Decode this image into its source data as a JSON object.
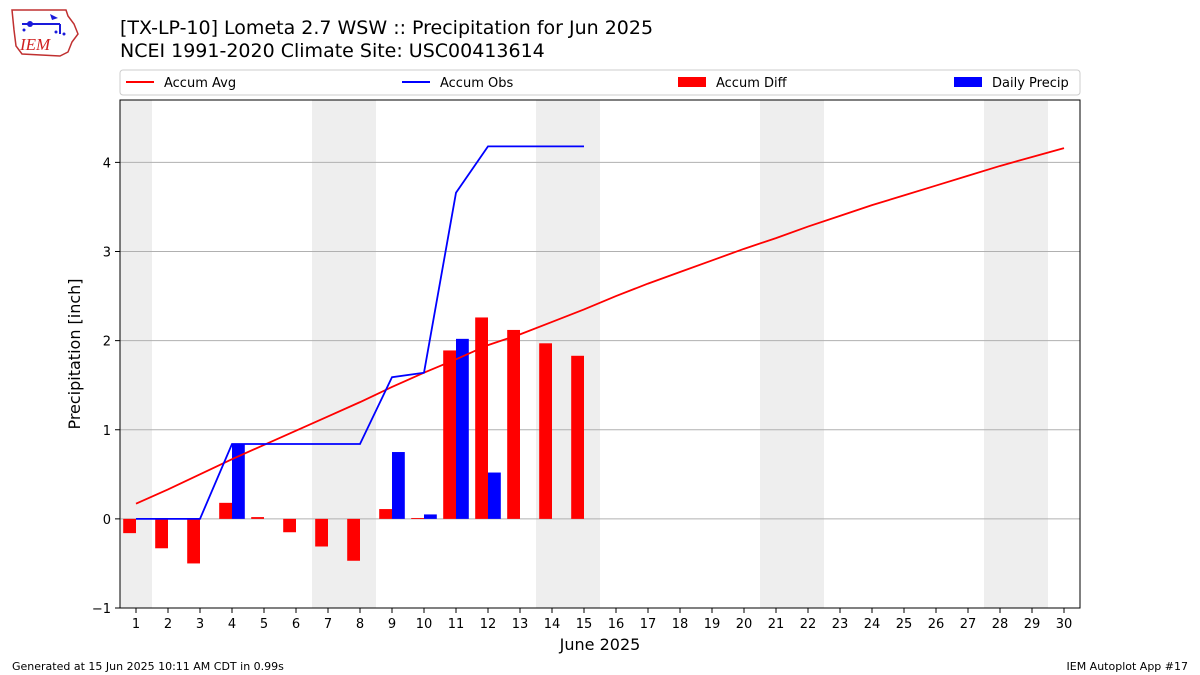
{
  "header": {
    "title_line1": "[TX-LP-10] Lometa 2.7 WSW :: Precipitation for Jun 2025",
    "title_line2": "NCEI 1991-2020 Climate Site: USC00413614"
  },
  "logo": {
    "text": "IEM",
    "icon": "iem-logo-icon"
  },
  "footer": {
    "left": "Generated at 15 Jun 2025 10:11 AM CDT in 0.99s",
    "right": "IEM Autoplot App #17"
  },
  "chart_data": {
    "type": "bar",
    "xlabel": "June 2025",
    "ylabel": "Precipitation [inch]",
    "xlim": [
      0.5,
      30.5
    ],
    "ylim": [
      -1,
      4.7
    ],
    "x_ticks": [
      "1",
      "2",
      "3",
      "4",
      "5",
      "6",
      "7",
      "8",
      "9",
      "10",
      "11",
      "12",
      "13",
      "14",
      "15",
      "16",
      "17",
      "18",
      "19",
      "20",
      "21",
      "22",
      "23",
      "24",
      "25",
      "26",
      "27",
      "28",
      "29",
      "30"
    ],
    "y_ticks": [
      -1,
      0,
      1,
      2,
      3,
      4
    ],
    "grid": "horizontal",
    "weekend_bands": [
      [
        1,
        1
      ],
      [
        7,
        8
      ],
      [
        14,
        15
      ],
      [
        21,
        22
      ],
      [
        28,
        29
      ]
    ],
    "legend": {
      "placement": "top",
      "entries": [
        {
          "label": "Accum Avg",
          "kind": "line",
          "color": "#ff0000"
        },
        {
          "label": "Accum Obs",
          "kind": "line",
          "color": "#0000ff"
        },
        {
          "label": "Accum Diff",
          "kind": "bar",
          "color": "#ff0000"
        },
        {
          "label": "Daily Precip",
          "kind": "bar",
          "color": "#0000ff"
        }
      ]
    },
    "series": [
      {
        "name": "Accum Avg",
        "kind": "line",
        "color": "#ff0000",
        "x": [
          1,
          2,
          3,
          4,
          5,
          6,
          7,
          8,
          9,
          10,
          11,
          12,
          13,
          14,
          15,
          16,
          17,
          18,
          19,
          20,
          21,
          22,
          23,
          24,
          25,
          26,
          27,
          28,
          29,
          30
        ],
        "values": [
          0.17,
          0.33,
          0.5,
          0.67,
          0.83,
          0.99,
          1.15,
          1.31,
          1.48,
          1.64,
          1.79,
          1.95,
          2.07,
          2.21,
          2.35,
          2.5,
          2.64,
          2.77,
          2.9,
          3.03,
          3.15,
          3.28,
          3.4,
          3.52,
          3.63,
          3.74,
          3.85,
          3.96,
          4.06,
          4.16
        ]
      },
      {
        "name": "Accum Obs",
        "kind": "line",
        "color": "#0000ff",
        "x": [
          1,
          2,
          3,
          4,
          5,
          6,
          7,
          8,
          9,
          10,
          11,
          12,
          13,
          14,
          15
        ],
        "values": [
          0,
          0,
          0,
          0.84,
          0.84,
          0.84,
          0.84,
          0.84,
          1.59,
          1.64,
          3.66,
          4.18,
          4.18,
          4.18,
          4.18
        ]
      },
      {
        "name": "Accum Diff",
        "kind": "bar",
        "color": "#ff0000",
        "x": [
          1,
          2,
          3,
          4,
          5,
          6,
          7,
          8,
          9,
          10,
          11,
          12,
          13,
          14,
          15
        ],
        "values": [
          -0.16,
          -0.33,
          -0.5,
          0.18,
          0.02,
          -0.15,
          -0.31,
          -0.47,
          0.11,
          0.01,
          1.89,
          2.26,
          2.12,
          1.97,
          1.83
        ]
      },
      {
        "name": "Daily Precip",
        "kind": "bar",
        "color": "#0000ff",
        "x": [
          1,
          2,
          3,
          4,
          5,
          6,
          7,
          8,
          9,
          10,
          11,
          12,
          13,
          14,
          15
        ],
        "values": [
          0,
          0,
          0,
          0.84,
          0,
          0,
          0,
          0,
          0.75,
          0.05,
          2.02,
          0.52,
          0,
          0,
          0
        ]
      }
    ]
  }
}
